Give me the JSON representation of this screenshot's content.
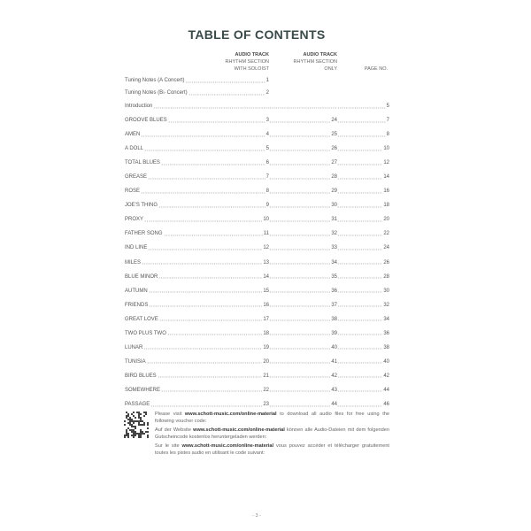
{
  "title": "TABLE OF CONTENTS",
  "headers": {
    "col1": {
      "bold": "AUDIO TRACK",
      "line2": "RHYTHM SECTION",
      "line3": "WITH SOLOIST"
    },
    "col2": {
      "bold": "AUDIO TRACK",
      "line2": "RHYTHM SECTION",
      "line3": "ONLY"
    },
    "col3": "PAGE NO."
  },
  "intro_rows": [
    {
      "title": "Tuning Notes (A Concert)",
      "soloist": "1",
      "rhythm": "",
      "page": ""
    },
    {
      "title": "Tuning Notes (B♭ Concert)",
      "soloist": "2",
      "rhythm": "",
      "page": ""
    },
    {
      "title": "Introduction",
      "soloist": "",
      "rhythm": "",
      "page": "5"
    }
  ],
  "songs": [
    {
      "title": "GROOVE BLUES",
      "soloist": "3",
      "rhythm": "24",
      "page": "7"
    },
    {
      "title": "AMEN",
      "soloist": "4",
      "rhythm": "25",
      "page": "8"
    },
    {
      "title": "A DOLL",
      "soloist": "5",
      "rhythm": "26",
      "page": "10"
    },
    {
      "title": "TOTAL BLUES",
      "soloist": "6",
      "rhythm": "27",
      "page": "12"
    },
    {
      "title": "GREASE",
      "soloist": "7",
      "rhythm": "28",
      "page": "14"
    },
    {
      "title": "ROSE",
      "soloist": "8",
      "rhythm": "29",
      "page": "16"
    },
    {
      "title": "JOE'S THING",
      "soloist": "9",
      "rhythm": "30",
      "page": "18"
    },
    {
      "title": "PROXY",
      "soloist": "10",
      "rhythm": "31",
      "page": "20"
    },
    {
      "title": "FATHER SONG",
      "soloist": "11",
      "rhythm": "32",
      "page": "22"
    },
    {
      "title": "IND LINE",
      "soloist": "12",
      "rhythm": "33",
      "page": "24"
    },
    {
      "title": "MILES",
      "soloist": "13",
      "rhythm": "34",
      "page": "26"
    },
    {
      "title": "BLUE MINOR",
      "soloist": "14",
      "rhythm": "35",
      "page": "28"
    },
    {
      "title": "AUTUMN",
      "soloist": "15",
      "rhythm": "36",
      "page": "30"
    },
    {
      "title": "FRIENDS",
      "soloist": "16",
      "rhythm": "37",
      "page": "32"
    },
    {
      "title": "GREAT LOVE",
      "soloist": "17",
      "rhythm": "38",
      "page": "34"
    },
    {
      "title": "TWO PLUS TWO",
      "soloist": "18",
      "rhythm": "39",
      "page": "36"
    },
    {
      "title": "LUNAR",
      "soloist": "19",
      "rhythm": "40",
      "page": "38"
    },
    {
      "title": "TUNISIA",
      "soloist": "20",
      "rhythm": "41",
      "page": "40"
    },
    {
      "title": "BIRD BLUES",
      "soloist": "21",
      "rhythm": "42",
      "page": "42"
    },
    {
      "title": "SOMEWHERE",
      "soloist": "22",
      "rhythm": "43",
      "page": "44"
    },
    {
      "title": "PASSAGE",
      "soloist": "23",
      "rhythm": "44",
      "page": "46"
    }
  ],
  "voucher": {
    "url": "www.schott-music.com/online-material",
    "en_pre": "Please visit ",
    "en_post": " to download all audio files for free using the following voucher code:",
    "de_pre": "Auf der Website ",
    "de_post": " können alle Audio-Dateien mit dem folgenden Gutscheincode kostenlos heruntergeladen werden:",
    "fr_pre": "Sur le site ",
    "fr_post": " vous pouvez accéder et télécharger gratuitement toutes les pistes audio en utilisant le code suivant:"
  },
  "page_number": "- 3 -"
}
